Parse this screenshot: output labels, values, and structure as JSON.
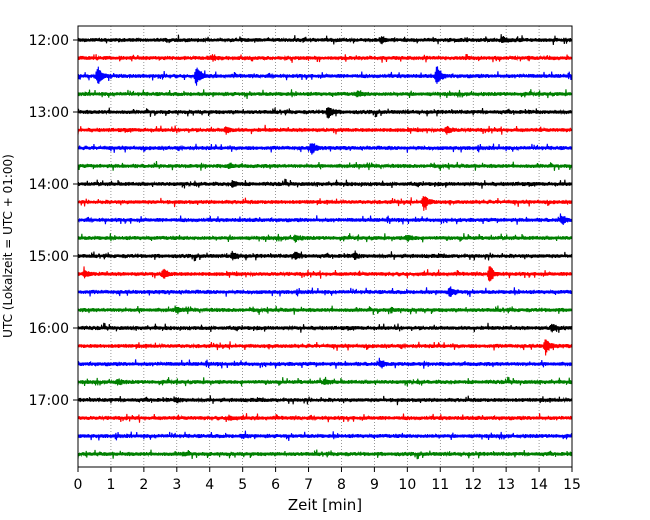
{
  "chart_data": {
    "type": "line",
    "subtype": "helicorder",
    "title": "",
    "xlabel": "Zeit  [min]",
    "ylabel": "UTC (Lokalzeit = UTC + 01:00)",
    "xlim": [
      0,
      15
    ],
    "x_ticks": [
      0,
      1,
      2,
      3,
      4,
      5,
      6,
      7,
      8,
      9,
      10,
      11,
      12,
      13,
      14,
      15
    ],
    "x_tick_labels": [
      "0",
      "1",
      "2",
      "3",
      "4",
      "5",
      "6",
      "7",
      "8",
      "9",
      "10",
      "11",
      "12",
      "13",
      "14",
      "15"
    ],
    "y_tick_labels": [
      "12:00",
      "13:00",
      "14:00",
      "15:00",
      "16:00",
      "17:00"
    ],
    "grid": "vertical dotted at each minute",
    "trace_colors": [
      "#000000",
      "#ff0000",
      "#0000ff",
      "#008000"
    ],
    "traces": [
      {
        "start": "12:00",
        "events": [
          [
            9.2,
            0.35
          ],
          [
            12.9,
            0.3
          ]
        ]
      },
      {
        "start": "12:15",
        "events": [
          [
            4.1,
            0.25
          ]
        ]
      },
      {
        "start": "12:30",
        "events": [
          [
            0.6,
            1.0
          ],
          [
            3.6,
            1.0
          ],
          [
            10.9,
            1.0
          ]
        ]
      },
      {
        "start": "12:45",
        "events": [
          [
            8.5,
            0.25
          ]
        ]
      },
      {
        "start": "13:00",
        "events": [
          [
            7.6,
            0.75
          ]
        ]
      },
      {
        "start": "13:15",
        "events": [
          [
            4.5,
            0.35
          ],
          [
            11.2,
            0.4
          ]
        ]
      },
      {
        "start": "13:30",
        "events": [
          [
            7.1,
            0.7
          ]
        ]
      },
      {
        "start": "13:45",
        "events": [
          [
            4.6,
            0.25
          ]
        ]
      },
      {
        "start": "14:00",
        "events": [
          [
            4.7,
            0.3
          ]
        ]
      },
      {
        "start": "14:15",
        "events": [
          [
            10.5,
            0.9
          ]
        ]
      },
      {
        "start": "14:30",
        "events": [
          [
            14.7,
            0.5
          ]
        ]
      },
      {
        "start": "14:45",
        "events": [
          [
            6.6,
            0.35
          ],
          [
            10.0,
            0.3
          ]
        ]
      },
      {
        "start": "15:00",
        "events": [
          [
            4.7,
            0.45
          ],
          [
            6.6,
            0.4
          ],
          [
            8.4,
            0.3
          ]
        ]
      },
      {
        "start": "15:15",
        "events": [
          [
            0.2,
            0.35
          ],
          [
            2.6,
            0.5
          ],
          [
            12.5,
            1.0
          ]
        ]
      },
      {
        "start": "15:30",
        "events": [
          [
            11.3,
            0.5
          ]
        ]
      },
      {
        "start": "15:45",
        "events": [
          [
            3.0,
            0.2
          ],
          [
            9.5,
            0.2
          ]
        ]
      },
      {
        "start": "16:00",
        "events": [
          [
            14.4,
            0.45
          ]
        ]
      },
      {
        "start": "16:15",
        "events": [
          [
            14.2,
            0.9
          ]
        ]
      },
      {
        "start": "16:30",
        "events": [
          [
            9.2,
            0.4
          ]
        ]
      },
      {
        "start": "16:45",
        "events": [
          [
            1.2,
            0.3
          ],
          [
            7.5,
            0.25
          ]
        ]
      },
      {
        "start": "17:00",
        "events": [
          [
            3.0,
            0.2
          ]
        ]
      },
      {
        "start": "17:15",
        "events": [
          [
            4.6,
            0.25
          ]
        ]
      },
      {
        "start": "17:30",
        "events": [
          [
            5.0,
            0.15
          ]
        ]
      },
      {
        "start": "17:45",
        "events": [
          [
            3.2,
            0.15
          ]
        ]
      }
    ]
  }
}
